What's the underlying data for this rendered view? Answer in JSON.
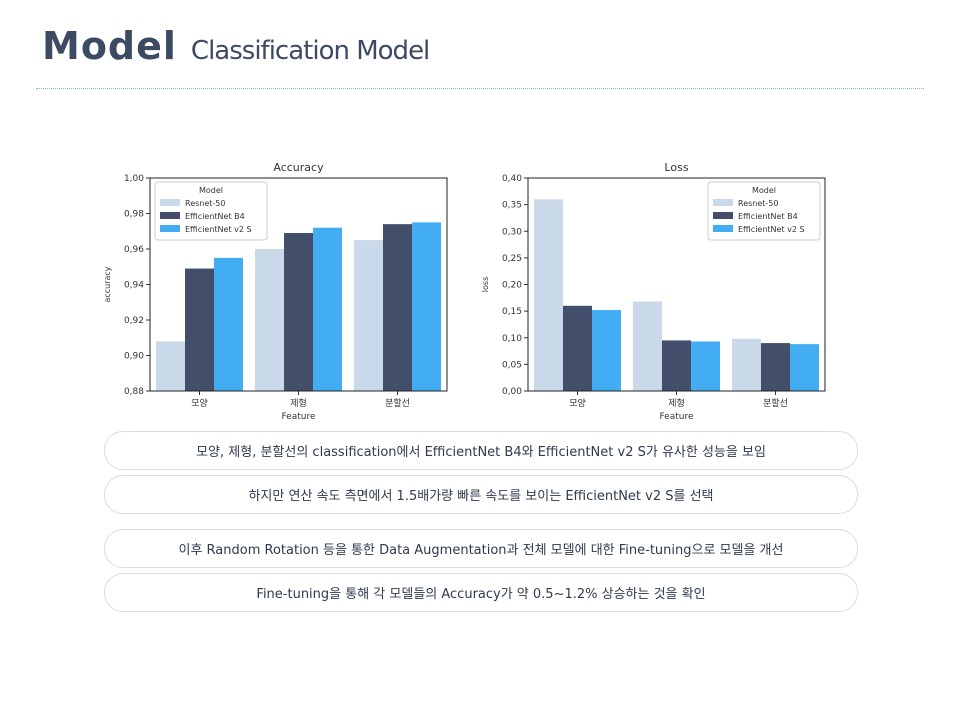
{
  "header": {
    "title": "Model",
    "subtitle": "Classification Model"
  },
  "chart_data": [
    {
      "type": "bar",
      "title": "Accuracy",
      "xlabel": "Feature",
      "ylabel": "accuracy",
      "categories": [
        "모양",
        "제형",
        "분할선"
      ],
      "ylim": [
        0.88,
        1.0
      ],
      "yticks": [
        "0,88",
        "0,90",
        "0,92",
        "0,94",
        "0,96",
        "0,98",
        "1,00"
      ],
      "yticks_values": [
        0.88,
        0.9,
        0.92,
        0.94,
        0.96,
        0.98,
        1.0
      ],
      "legend_title": "Model",
      "legend_position": "top-left",
      "series": [
        {
          "name": "Resnet-50",
          "values": [
            0.908,
            0.96,
            0.965
          ],
          "color": "#c9d9ea"
        },
        {
          "name": "EfficientNet B4",
          "values": [
            0.949,
            0.969,
            0.974
          ],
          "color": "#434f6a"
        },
        {
          "name": "EfficientNet v2 S",
          "values": [
            0.955,
            0.972,
            0.975
          ],
          "color": "#43adf3"
        }
      ]
    },
    {
      "type": "bar",
      "title": "Loss",
      "xlabel": "Feature",
      "ylabel": "loss",
      "categories": [
        "모양",
        "제형",
        "분할선"
      ],
      "ylim": [
        0.0,
        0.4
      ],
      "yticks": [
        "0,00",
        "0,05",
        "0,10",
        "0,15",
        "0,20",
        "0,25",
        "0,30",
        "0,35",
        "0,40"
      ],
      "yticks_values": [
        0.0,
        0.05,
        0.1,
        0.15,
        0.2,
        0.25,
        0.3,
        0.35,
        0.4
      ],
      "legend_title": "Model",
      "legend_position": "top-right",
      "series": [
        {
          "name": "Resnet-50",
          "values": [
            0.36,
            0.168,
            0.098
          ],
          "color": "#c9d9ea"
        },
        {
          "name": "EfficientNet B4",
          "values": [
            0.16,
            0.095,
            0.09
          ],
          "color": "#434f6a"
        },
        {
          "name": "EfficientNet v2 S",
          "values": [
            0.152,
            0.093,
            0.088
          ],
          "color": "#43adf3"
        }
      ]
    }
  ],
  "notes": [
    "모양, 제형, 분할선의 classification에서 EfficientNet B4와 EfficientNet v2 S가 유사한 성능을 보임",
    "하지만 연산 속도 측면에서 1.5배가량 빠른 속도를 보이는 EfficientNet v2 S를 선택",
    "이후 Random Rotation 등을 통한 Data Augmentation과 전체 모델에 대한 Fine-tuning으로 모델을 개선",
    "Fine-tuning을 통해 각 모델들의 Accuracy가 약 0.5~1.2% 상승하는 것을 확인"
  ]
}
